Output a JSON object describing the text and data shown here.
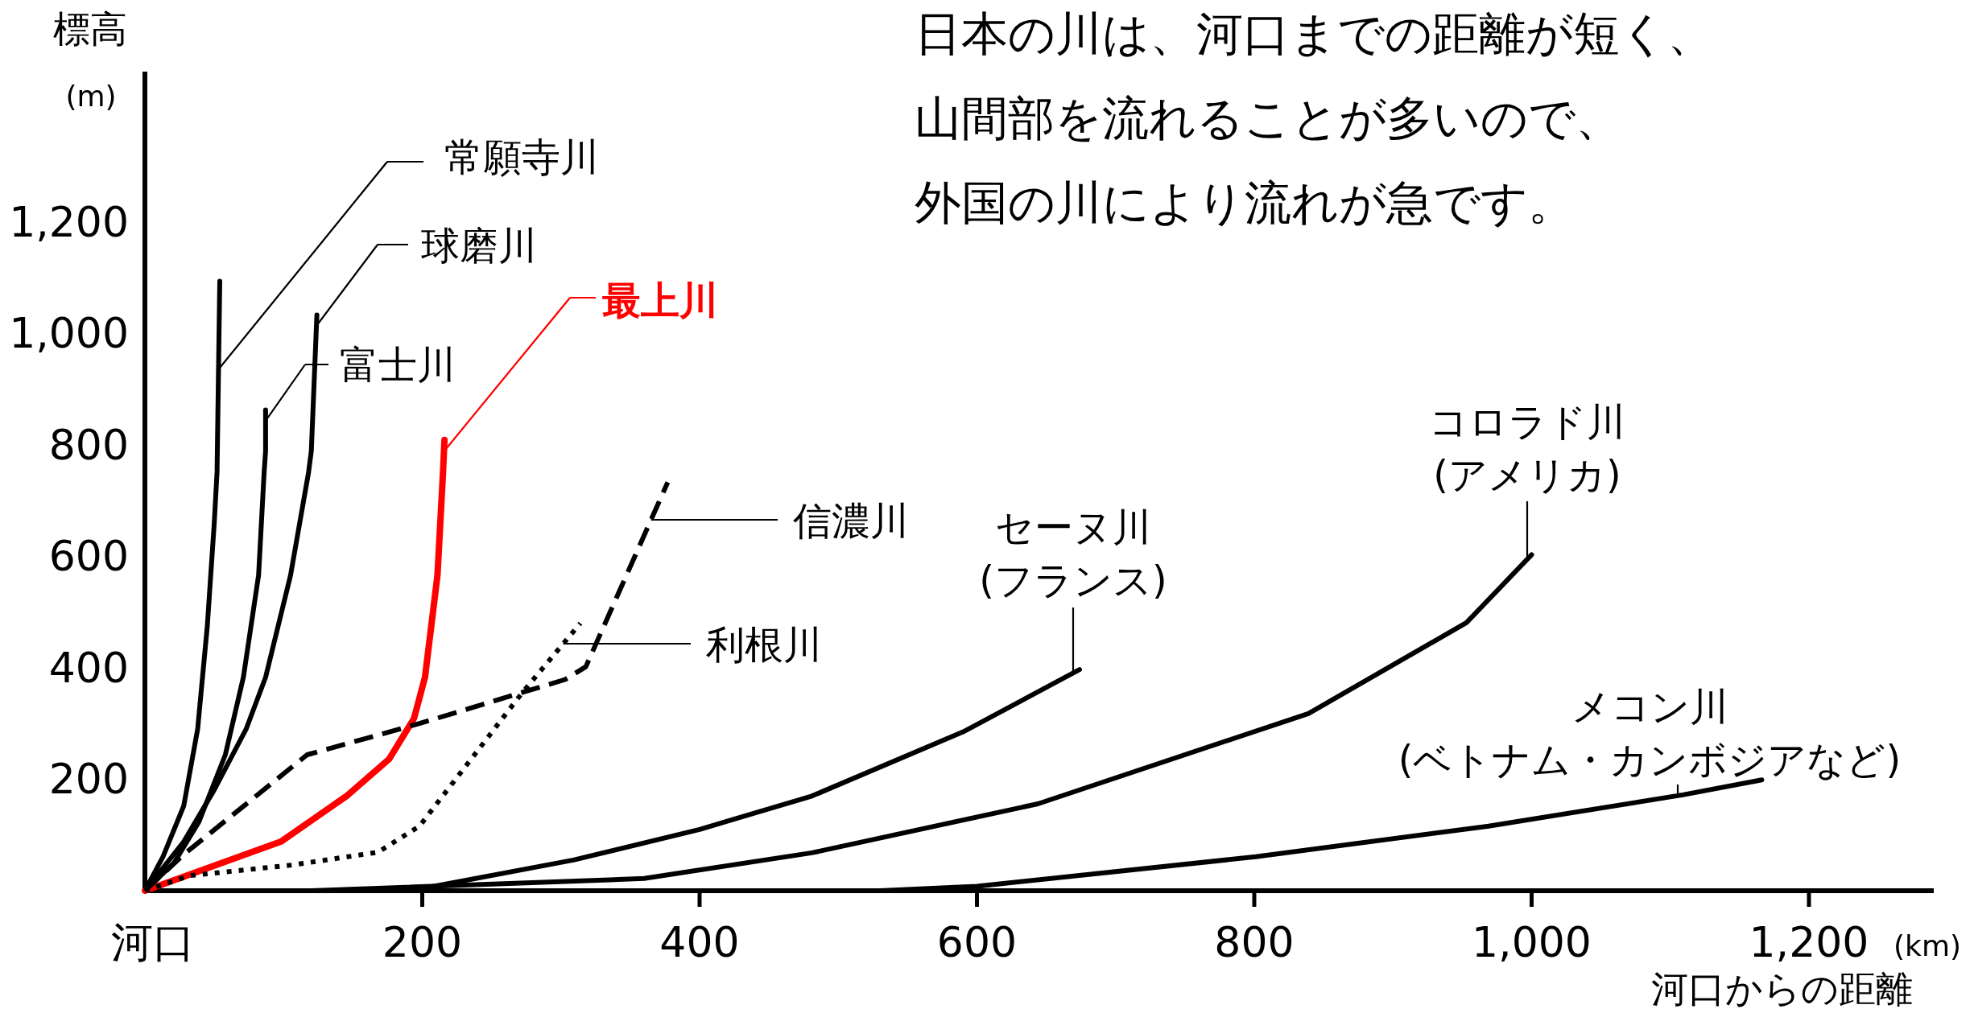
{
  "chart_data": {
    "type": "line",
    "title": "日本の川は、河口までの距離が短く、山間部を流れることが多いので、外国の川により流れが急です。",
    "xlabel": "河口からの距離",
    "ylabel": "標高",
    "annotations": [
      "(km)",
      "(m)"
    ],
    "xlim": [
      0,
      1290
    ],
    "ylim": [
      0,
      1470
    ],
    "xticks": [
      {
        "value": 0,
        "label": "河口"
      },
      200,
      400,
      600,
      800,
      {
        "value": 1000,
        "label": "1,000"
      },
      {
        "value": 1200,
        "label": "1,200"
      }
    ],
    "yticks": [
      200,
      400,
      600,
      800,
      {
        "value": 1000,
        "label": "1,000"
      },
      {
        "value": 1200,
        "label": "1,200"
      }
    ],
    "grid": false,
    "marker": "none",
    "legend": "top left",
    "series": [
      {
        "name": "常願寺川",
        "color": "#000000",
        "line_style": "solid",
        "x": [
          0,
          13,
          28,
          38,
          45,
          50,
          52,
          54
        ],
        "values": [
          0,
          61,
          152,
          290,
          475,
          659,
          751,
          1094
        ]
      },
      {
        "name": "球磨川",
        "color": "#000000",
        "line_style": "solid",
        "x": [
          0,
          28,
          50,
          73,
          87,
          105,
          118,
          120,
          124
        ],
        "values": [
          0,
          88,
          181,
          290,
          383,
          566,
          751,
          789,
          1033
        ]
      },
      {
        "name": "富士川",
        "color": "#000000",
        "line_style": "solid",
        "x": [
          0,
          21,
          39,
          58,
          71,
          82,
          86,
          87,
          87
        ],
        "values": [
          0,
          50,
          124,
          244,
          383,
          566,
          751,
          789,
          863
        ]
      },
      {
        "name": "最上川",
        "color": "#ff0000",
        "line_style": "solid",
        "x": [
          0,
          98,
          146,
          176,
          194,
          202,
          211,
          215,
          216
        ],
        "values": [
          0,
          88,
          171,
          236,
          309,
          383,
          566,
          751,
          809
        ]
      },
      {
        "name": "信濃川",
        "color": "#000000",
        "line_style": "dashed",
        "x": [
          0,
          28,
          117,
          198,
          303,
          318,
          377
        ],
        "values": [
          0,
          65,
          244,
          300,
          379,
          402,
          733
        ]
      },
      {
        "name": "利根川",
        "color": "#000000",
        "line_style": "dotted",
        "x": [
          0,
          32,
          106,
          168,
          198,
          272,
          314
        ],
        "values": [
          0,
          27,
          46,
          69,
          116,
          355,
          480
        ]
      },
      {
        "name": "セーヌ川\n(フランス)",
        "color": "#000000",
        "line_style": "solid",
        "x": [
          150,
          200,
          309,
          400,
          481,
          590,
          674
        ],
        "values": [
          0,
          4,
          55,
          110,
          170,
          285,
          397
        ]
      },
      {
        "name": "コロラド川\n(アメリカ)",
        "color": "#000000",
        "line_style": "solid",
        "x": [
          120,
          360,
          481,
          644,
          839,
          953,
          1000
        ],
        "values": [
          0,
          22,
          68,
          156,
          318,
          481,
          603
        ]
      },
      {
        "name": "メコン川\n(ベトナム・カンボジアなど)",
        "color": "#000000",
        "line_style": "solid",
        "x": [
          530,
          600,
          801,
          969,
          1109,
          1166
        ],
        "values": [
          0,
          8,
          61,
          116,
          172,
          199
        ]
      }
    ]
  }
}
